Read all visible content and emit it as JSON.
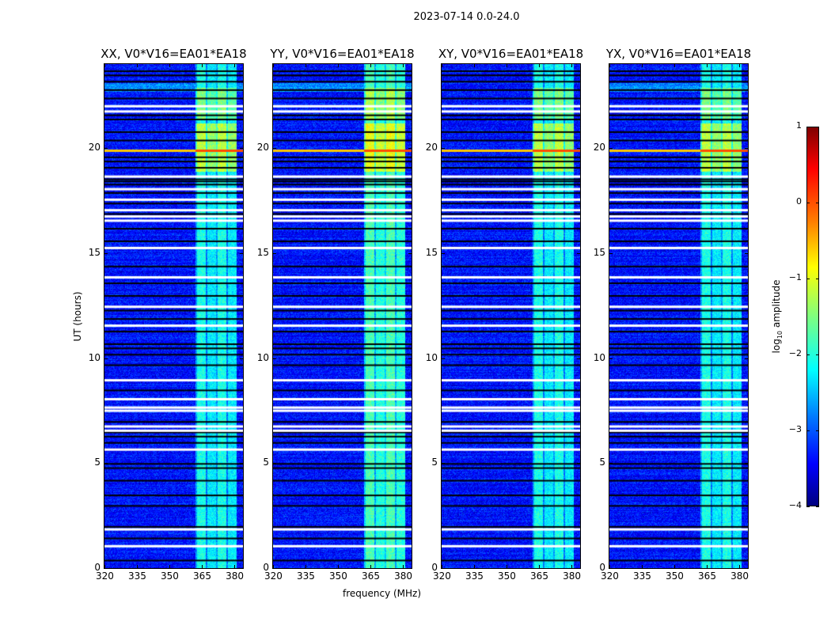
{
  "suptitle": "2023-07-14 0.0-24.0",
  "xlabel": "frequency (MHz)",
  "ylabel": "UT (hours)",
  "colorbar": {
    "label_prefix": "log",
    "label_sub": "10",
    "label_suffix": " amplitude",
    "ticks": [
      "1",
      "0",
      "−1",
      "−2",
      "−3",
      "−4"
    ],
    "range": [
      -4,
      1
    ],
    "colormap": "jet"
  },
  "chart_data": {
    "type": "heatmap",
    "panels": [
      {
        "title": "XX, V0*V16=EA01*EA18"
      },
      {
        "title": "YY, V0*V16=EA01*EA18"
      },
      {
        "title": "XY, V0*V16=EA01*EA18"
      },
      {
        "title": "YX, V0*V16=EA01*EA18"
      }
    ],
    "xlim": [
      320,
      384
    ],
    "ylim": [
      0,
      24
    ],
    "xticks": [
      "320",
      "335",
      "350",
      "365",
      "380"
    ],
    "xtick_values": [
      320,
      335,
      350,
      365,
      380
    ],
    "yticks": [
      "0",
      "5",
      "10",
      "15",
      "20"
    ],
    "ytick_values": [
      0,
      5,
      10,
      15,
      20
    ],
    "rfi_band_mhz": [
      362,
      381
    ],
    "rfi_strong_hours": [
      18.9,
      21.2
    ],
    "bright_line_hour": 19.9,
    "background_log_amp": -3.3,
    "band_log_amp": -2.0,
    "flagged_white_hours": [
      1.1,
      1.9,
      5.7,
      6.6,
      6.8,
      7.55,
      7.7,
      8.1,
      9.0,
      11.6,
      12.5,
      13.9,
      15.3,
      16.6,
      16.8,
      17.1,
      17.6,
      18.1,
      18.7,
      21.8,
      22.05
    ],
    "flagged_black_hours": [
      0.4,
      1.45,
      2.0,
      3.0,
      3.5,
      4.2,
      4.8,
      5.0,
      6.0,
      6.3,
      6.5,
      7.0,
      8.5,
      9.7,
      10.2,
      10.5,
      10.7,
      11.3,
      11.9,
      12.3,
      13.0,
      13.6,
      14.4,
      15.6,
      16.2,
      16.9,
      17.4,
      17.9,
      18.3,
      18.45,
      18.55,
      19.1,
      19.4,
      19.6,
      20.4,
      20.8,
      21.4,
      21.6,
      22.4,
      22.8,
      23.2,
      23.5,
      23.7
    ]
  }
}
